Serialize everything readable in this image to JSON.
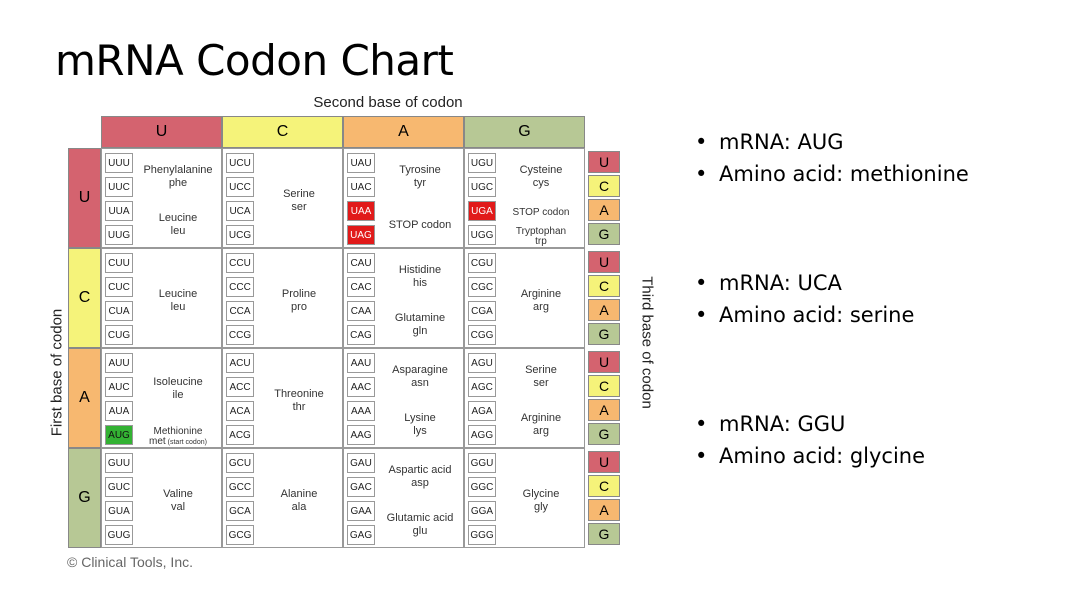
{
  "title": "mRNA Codon Chart",
  "chart": {
    "second_base_label": "Second base of codon",
    "first_base_label": "First base of codon",
    "third_base_label": "Third base of codon",
    "copyright": "© Clinical Tools, Inc.",
    "bases": [
      "U",
      "C",
      "A",
      "G"
    ],
    "base_colors": {
      "U": "#d4636f",
      "C": "#f5f37a",
      "A": "#f7b870",
      "G": "#b7c895"
    },
    "highlight_colors": {
      "stop": "#e11a1a",
      "start": "#33b233"
    },
    "blocks": [
      {
        "first": "U",
        "second": "U",
        "codons": [
          "UUU",
          "UUC",
          "UUA",
          "UUG"
        ],
        "codon_flags": [
          "",
          "",
          "",
          ""
        ],
        "amino": [
          {
            "name": "Phenylalanine",
            "abbr": "phe",
            "rows": [
              0,
              1
            ]
          },
          {
            "name": "Leucine",
            "abbr": "leu",
            "rows": [
              2,
              3
            ]
          }
        ]
      },
      {
        "first": "U",
        "second": "C",
        "codons": [
          "UCU",
          "UCC",
          "UCA",
          "UCG"
        ],
        "codon_flags": [
          "",
          "",
          "",
          ""
        ],
        "amino": [
          {
            "name": "Serine",
            "abbr": "ser",
            "rows": [
              0,
              3
            ]
          }
        ]
      },
      {
        "first": "U",
        "second": "A",
        "codons": [
          "UAU",
          "UAC",
          "UAA",
          "UAG"
        ],
        "codon_flags": [
          "",
          "",
          "stop",
          "stop"
        ],
        "amino": [
          {
            "name": "Tyrosine",
            "abbr": "tyr",
            "rows": [
              0,
              1
            ]
          },
          {
            "name": "STOP codon",
            "abbr": "",
            "rows": [
              2,
              3
            ]
          }
        ]
      },
      {
        "first": "U",
        "second": "G",
        "codons": [
          "UGU",
          "UGC",
          "UGA",
          "UGG"
        ],
        "codon_flags": [
          "",
          "",
          "stop",
          ""
        ],
        "amino": [
          {
            "name": "Cysteine",
            "abbr": "cys",
            "rows": [
              0,
              1
            ]
          },
          {
            "name": "STOP codon",
            "abbr": "",
            "rows": [
              2,
              2
            ]
          },
          {
            "name": "Tryptophan",
            "abbr": "trp",
            "rows": [
              3,
              3
            ]
          }
        ]
      },
      {
        "first": "C",
        "second": "U",
        "codons": [
          "CUU",
          "CUC",
          "CUA",
          "CUG"
        ],
        "codon_flags": [
          "",
          "",
          "",
          ""
        ],
        "amino": [
          {
            "name": "Leucine",
            "abbr": "leu",
            "rows": [
              0,
              3
            ]
          }
        ]
      },
      {
        "first": "C",
        "second": "C",
        "codons": [
          "CCU",
          "CCC",
          "CCA",
          "CCG"
        ],
        "codon_flags": [
          "",
          "",
          "",
          ""
        ],
        "amino": [
          {
            "name": "Proline",
            "abbr": "pro",
            "rows": [
              0,
              3
            ]
          }
        ]
      },
      {
        "first": "C",
        "second": "A",
        "codons": [
          "CAU",
          "CAC",
          "CAA",
          "CAG"
        ],
        "codon_flags": [
          "",
          "",
          "",
          ""
        ],
        "amino": [
          {
            "name": "Histidine",
            "abbr": "his",
            "rows": [
              0,
              1
            ]
          },
          {
            "name": "Glutamine",
            "abbr": "gln",
            "rows": [
              2,
              3
            ]
          }
        ]
      },
      {
        "first": "C",
        "second": "G",
        "codons": [
          "CGU",
          "CGC",
          "CGA",
          "CGG"
        ],
        "codon_flags": [
          "",
          "",
          "",
          ""
        ],
        "amino": [
          {
            "name": "Arginine",
            "abbr": "arg",
            "rows": [
              0,
              3
            ]
          }
        ]
      },
      {
        "first": "A",
        "second": "U",
        "codons": [
          "AUU",
          "AUC",
          "AUA",
          "AUG"
        ],
        "codon_flags": [
          "",
          "",
          "",
          "start"
        ],
        "amino": [
          {
            "name": "Isoleucine",
            "abbr": "ile",
            "rows": [
              0,
              2
            ]
          },
          {
            "name": "Methionine",
            "abbr": "met",
            "note": "(start codon)",
            "rows": [
              3,
              3
            ]
          }
        ]
      },
      {
        "first": "A",
        "second": "C",
        "codons": [
          "ACU",
          "ACC",
          "ACA",
          "ACG"
        ],
        "codon_flags": [
          "",
          "",
          "",
          ""
        ],
        "amino": [
          {
            "name": "Threonine",
            "abbr": "thr",
            "rows": [
              0,
              3
            ]
          }
        ]
      },
      {
        "first": "A",
        "second": "A",
        "codons": [
          "AAU",
          "AAC",
          "AAA",
          "AAG"
        ],
        "codon_flags": [
          "",
          "",
          "",
          ""
        ],
        "amino": [
          {
            "name": "Asparagine",
            "abbr": "asn",
            "rows": [
              0,
              1
            ]
          },
          {
            "name": "Lysine",
            "abbr": "lys",
            "rows": [
              2,
              3
            ]
          }
        ]
      },
      {
        "first": "A",
        "second": "G",
        "codons": [
          "AGU",
          "AGC",
          "AGA",
          "AGG"
        ],
        "codon_flags": [
          "",
          "",
          "",
          ""
        ],
        "amino": [
          {
            "name": "Serine",
            "abbr": "ser",
            "rows": [
              0,
              1
            ]
          },
          {
            "name": "Arginine",
            "abbr": "arg",
            "rows": [
              2,
              3
            ]
          }
        ]
      },
      {
        "first": "G",
        "second": "U",
        "codons": [
          "GUU",
          "GUC",
          "GUA",
          "GUG"
        ],
        "codon_flags": [
          "",
          "",
          "",
          ""
        ],
        "amino": [
          {
            "name": "Valine",
            "abbr": "val",
            "rows": [
              0,
              3
            ]
          }
        ]
      },
      {
        "first": "G",
        "second": "C",
        "codons": [
          "GCU",
          "GCC",
          "GCA",
          "GCG"
        ],
        "codon_flags": [
          "",
          "",
          "",
          ""
        ],
        "amino": [
          {
            "name": "Alanine",
            "abbr": "ala",
            "rows": [
              0,
              3
            ]
          }
        ]
      },
      {
        "first": "G",
        "second": "A",
        "codons": [
          "GAU",
          "GAC",
          "GAA",
          "GAG"
        ],
        "codon_flags": [
          "",
          "",
          "",
          ""
        ],
        "amino": [
          {
            "name": "Aspartic acid",
            "abbr": "asp",
            "rows": [
              0,
              1
            ]
          },
          {
            "name": "Glutamic acid",
            "abbr": "glu",
            "rows": [
              2,
              3
            ]
          }
        ]
      },
      {
        "first": "G",
        "second": "G",
        "codons": [
          "GGU",
          "GGC",
          "GGA",
          "GGG"
        ],
        "codon_flags": [
          "",
          "",
          "",
          ""
        ],
        "amino": [
          {
            "name": "Glycine",
            "abbr": "gly",
            "rows": [
              0,
              3
            ]
          }
        ]
      }
    ]
  },
  "examples": [
    {
      "mrna": "mRNA: AUG",
      "amino": "Amino acid: methionine"
    },
    {
      "mrna": "mRNA: UCA",
      "amino": "Amino acid: serine"
    },
    {
      "mrna": "mRNA: GGU",
      "amino": "Amino acid: glycine"
    }
  ]
}
